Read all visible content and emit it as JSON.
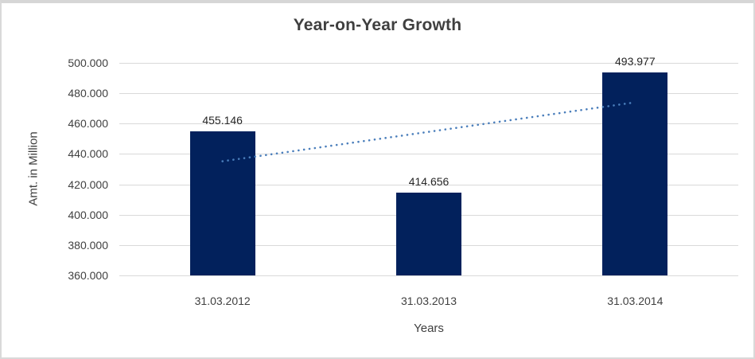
{
  "chart_data": {
    "type": "bar",
    "title": "Year-on-Year Growth",
    "xlabel": "Years",
    "ylabel": "Amt. in Million",
    "categories": [
      "31.03.2012",
      "31.03.2013",
      "31.03.2014"
    ],
    "values": [
      455.146,
      414.656,
      493.977
    ],
    "data_labels": [
      "455.146",
      "414.656",
      "493.977"
    ],
    "ylim": [
      360,
      500
    ],
    "ytick_step": 20,
    "ytick_labels": [
      "360.000",
      "380.000",
      "400.000",
      "420.000",
      "440.000",
      "460.000",
      "480.000",
      "500.000"
    ],
    "grid": true,
    "legend": false,
    "trendline": {
      "type": "linear",
      "style": "dotted",
      "start_value": 435.2,
      "end_value": 474.0
    },
    "colors": {
      "bar": "#02215c",
      "trendline": "#4a7ebb",
      "gridline": "#d9d9d9",
      "title_text": "#3f3f3f",
      "tick_text": "#404040",
      "data_label_text": "#262626",
      "border": "#d9d9d9"
    }
  }
}
